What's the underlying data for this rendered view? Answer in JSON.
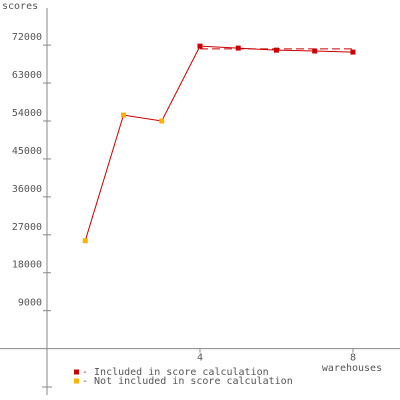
{
  "chart_data": {
    "type": "line",
    "x_label": "scores",
    "y_label_unused": null,
    "xaxis_title": "warehouses",
    "x": [
      1,
      2,
      3,
      4,
      5,
      6,
      7,
      8
    ],
    "series": [
      {
        "name": "- Included in score calculation",
        "color": "#cc0000",
        "values": [
          null,
          null,
          null,
          71760,
          71290,
          70800,
          70600,
          70340
        ]
      },
      {
        "name": "- Not included in score calculation",
        "color": "#ffb000",
        "values": [
          25600,
          55400,
          54000,
          null,
          null,
          null,
          null,
          null
        ]
      }
    ],
    "line_color": "#cc0000",
    "reference_value": 71100,
    "xlim": [
      0,
      9.23
    ],
    "xticks": [
      4,
      8
    ],
    "ylim": [
      -11000,
      80800
    ],
    "yticks": [
      9000,
      18000,
      27000,
      36000,
      45000,
      54000,
      63000,
      72000
    ]
  }
}
